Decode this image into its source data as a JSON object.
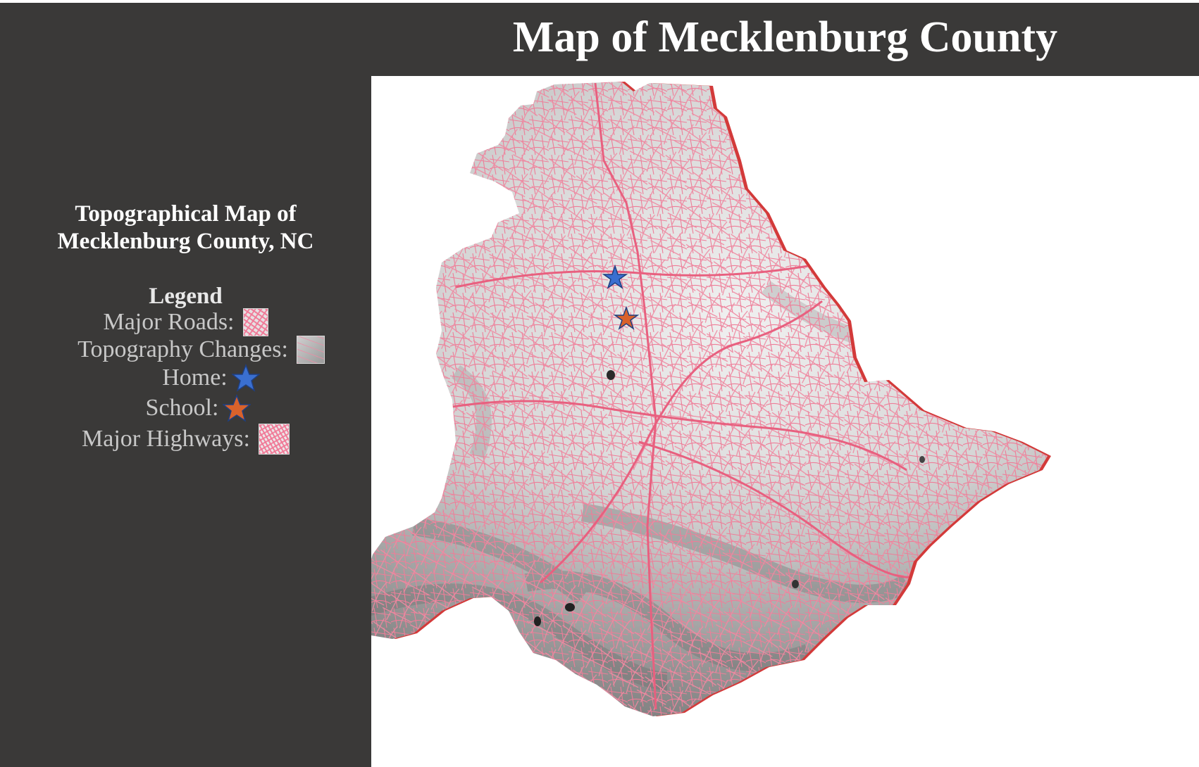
{
  "header": {
    "title": "Map of Mecklenburg County"
  },
  "sidebar": {
    "title_line1": "Topographical Map of",
    "title_line2": "Mecklenburg County, NC",
    "legend": {
      "heading": "Legend",
      "items": [
        {
          "label": "Major Roads:",
          "symbol": "roads-swatch"
        },
        {
          "label": "Topography Changes:",
          "symbol": "topography-swatch"
        },
        {
          "label": "Home:",
          "symbol": "star-icon",
          "color": "#3a6fd0"
        },
        {
          "label": "School:",
          "symbol": "star-icon",
          "color": "#d9622b"
        },
        {
          "label": "Major Highways:",
          "symbol": "highways-swatch"
        }
      ]
    }
  },
  "map": {
    "region": "Mecklenburg County",
    "road_color": "#ee7d98",
    "terrain_light": "#e4e4e4",
    "terrain_dark": "#6e6e6e",
    "border_color": "#d33a3a",
    "markers": [
      {
        "name": "Home",
        "color": "#3a6fd0"
      },
      {
        "name": "School",
        "color": "#d9622b"
      }
    ]
  },
  "colors": {
    "panel_background": "#3a3938",
    "title_text": "#ffffff",
    "legend_text": "#c8c8c8"
  }
}
